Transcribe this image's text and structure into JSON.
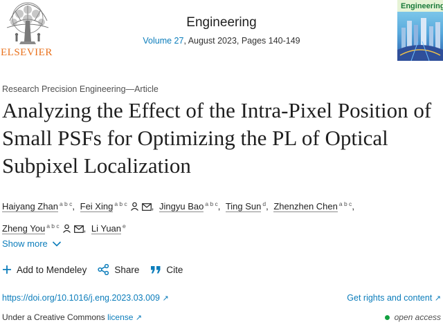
{
  "header": {
    "publisher_logo_text": "ELSEVIER",
    "journal_title": "Engineering",
    "volume_link": "Volume 27",
    "volume_rest": ", August 2023, Pages 140-149",
    "cover_text": "Engineering"
  },
  "article": {
    "type": "Research Precision Engineering—Article",
    "title": "Analyzing the Effect of the Intra-Pixel Position of Small PSFs for Optimizing the PL of Optical Subpixel Localization",
    "authors": [
      {
        "name": "Haiyang Zhan",
        "aff": "a b c",
        "person": false,
        "email": false
      },
      {
        "name": "Fei Xing",
        "aff": "a b c",
        "person": true,
        "email": true
      },
      {
        "name": "Jingyu Bao",
        "aff": "a b c",
        "person": false,
        "email": false
      },
      {
        "name": "Ting Sun",
        "aff": "d",
        "person": false,
        "email": false
      },
      {
        "name": "Zhenzhen Chen",
        "aff": "a b c",
        "person": false,
        "email": false
      },
      {
        "name": "Zheng You",
        "aff": "a b c",
        "person": true,
        "email": true
      },
      {
        "name": "Li Yuan",
        "aff": "e",
        "person": false,
        "email": false
      }
    ],
    "show_more": "Show more"
  },
  "actions": {
    "mendeley": "Add to Mendeley",
    "share": "Share",
    "cite": "Cite"
  },
  "links": {
    "doi": "https://doi.org/10.1016/j.eng.2023.03.009",
    "rights": "Get rights and content",
    "license_prefix": "Under a Creative Commons ",
    "license_link": "license",
    "open_access": "open access",
    "external_glyph": "↗"
  },
  "colors": {
    "link": "#0c7dbb",
    "elsevier_orange": "#e9711c",
    "open_access_green": "#12a040"
  }
}
